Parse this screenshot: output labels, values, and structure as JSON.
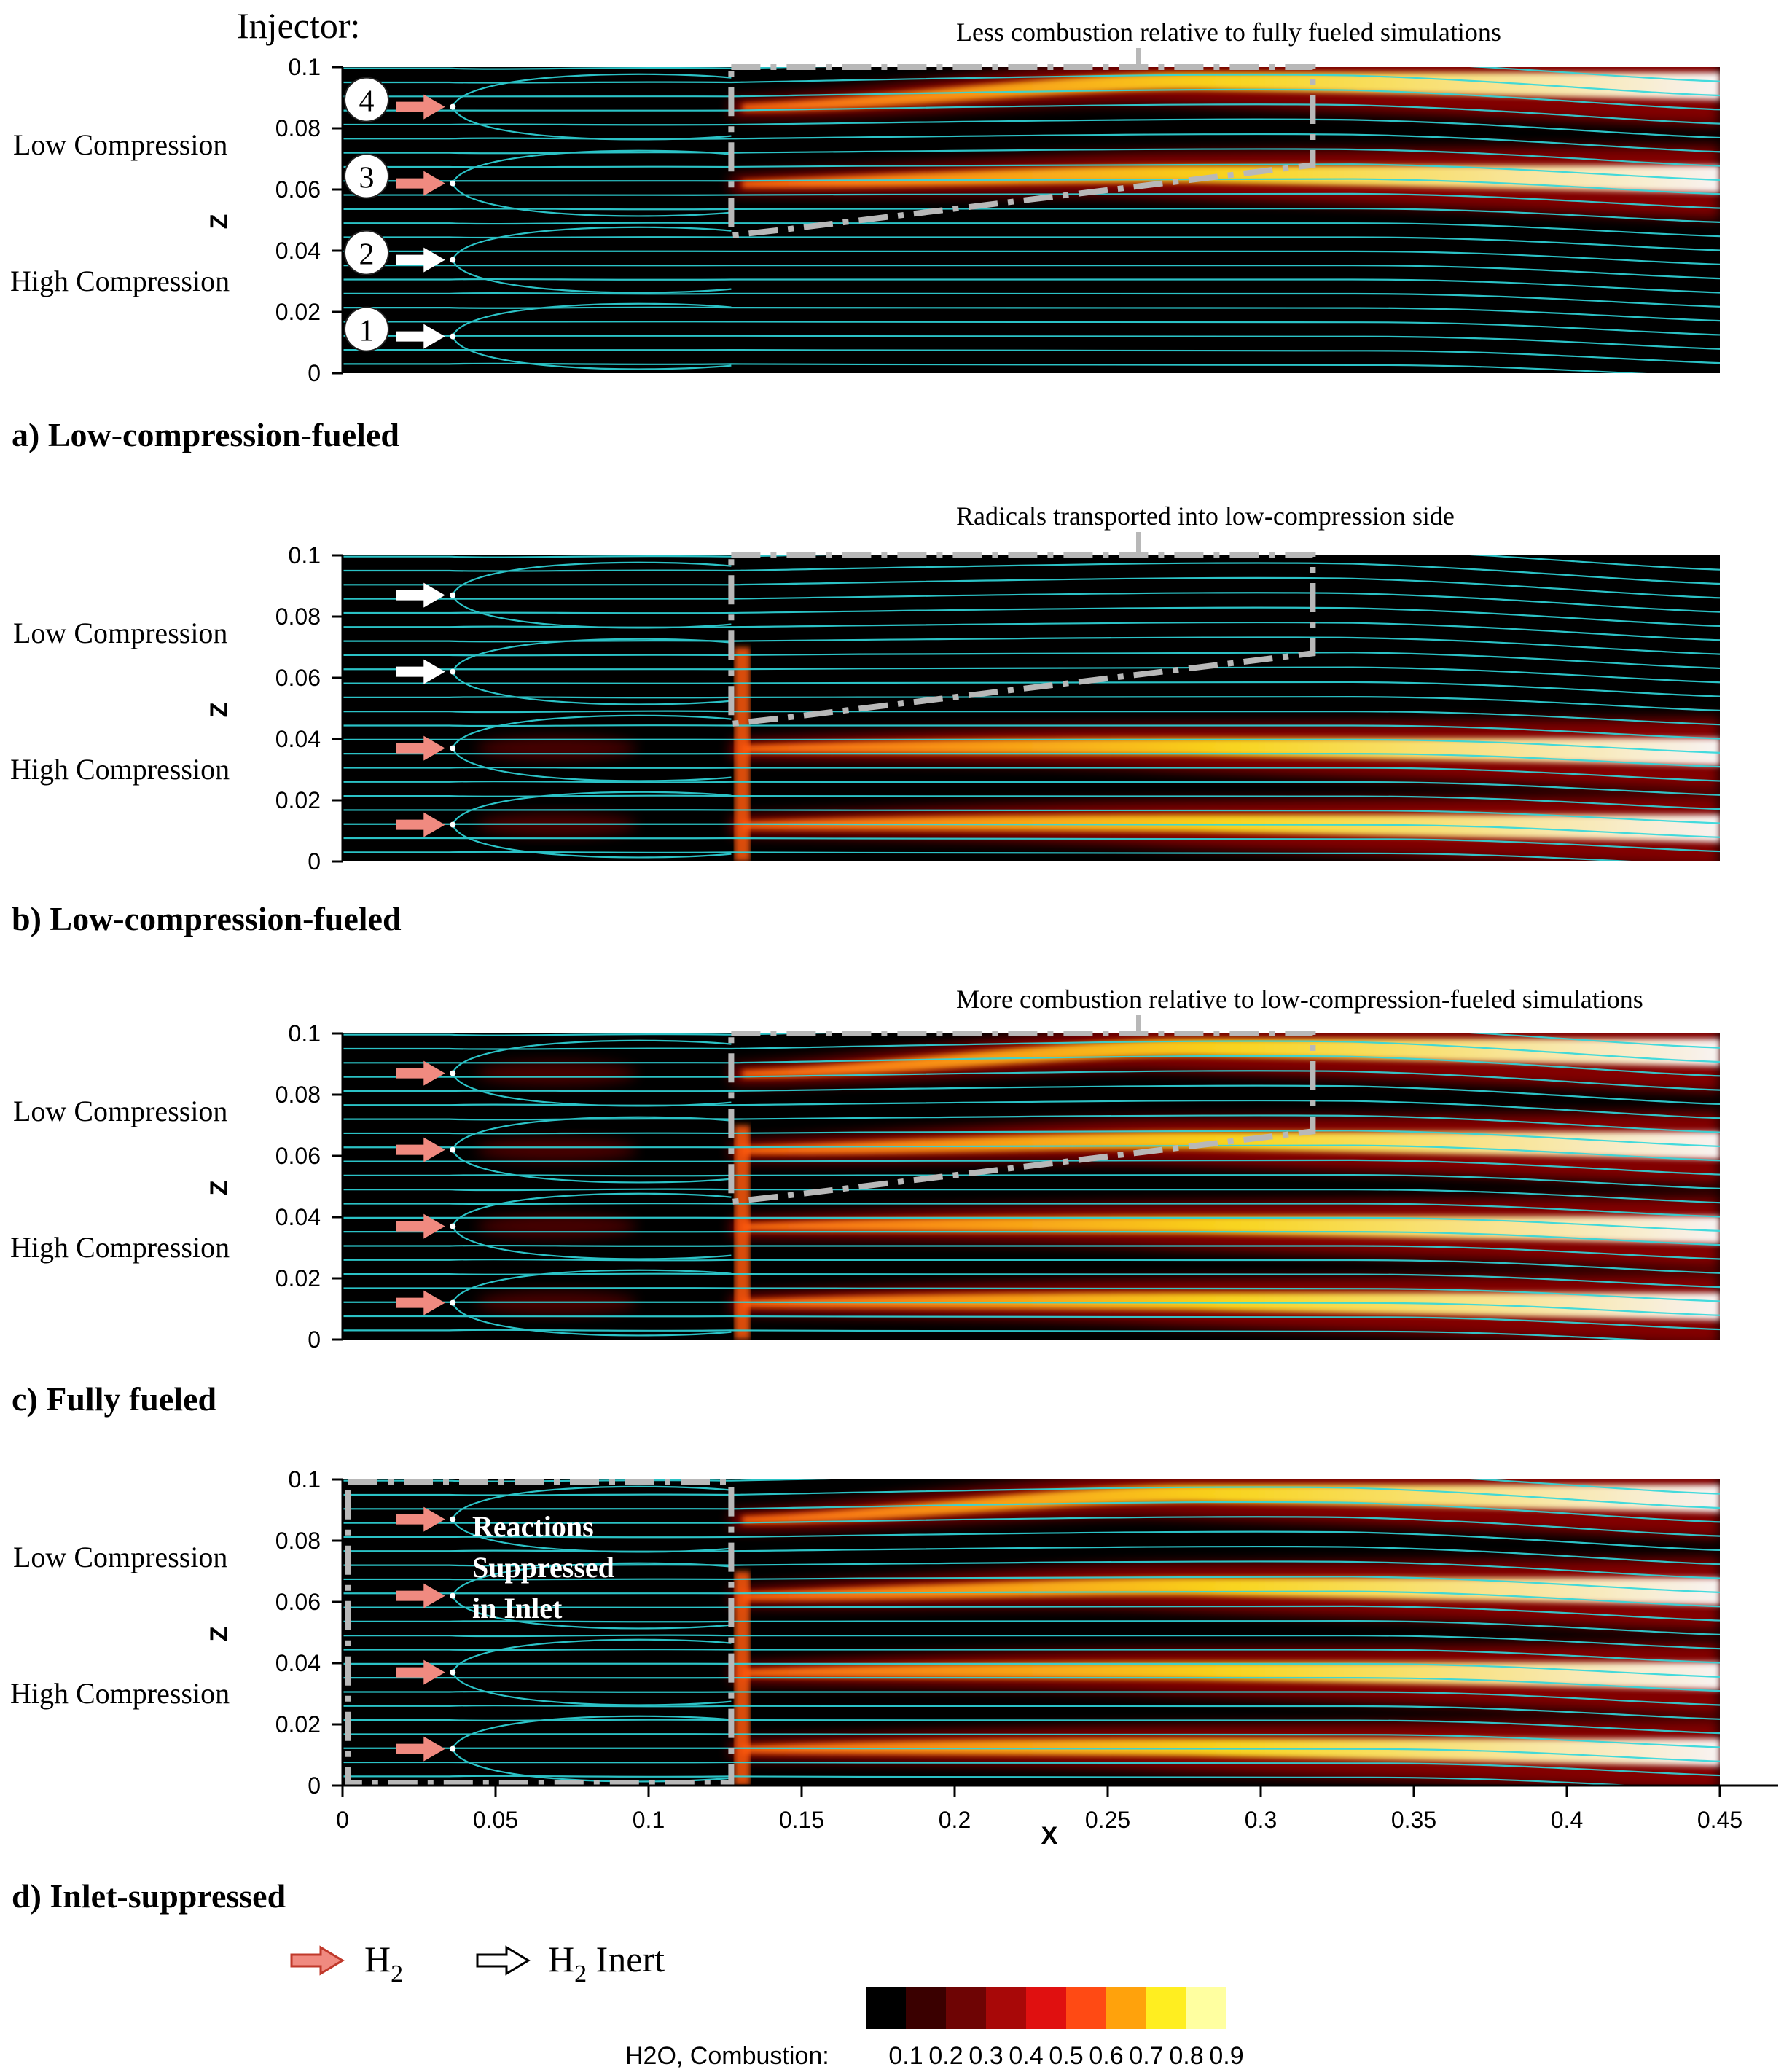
{
  "figure": {
    "injector_label": "Injector:",
    "colorbar_label": "H2O, Combustion:",
    "colorbar_ticks": [
      "0.1",
      "0.2",
      "0.3",
      "0.4",
      "0.5",
      "0.6",
      "0.7",
      "0.8",
      "0.9"
    ],
    "colorbar_colors": [
      "#000000",
      "#3a0000",
      "#6e0404",
      "#a80808",
      "#e01010",
      "#ff4a14",
      "#ffa20c",
      "#ffee20",
      "#ffffa0",
      "#ffffff"
    ],
    "legend": {
      "h2_main": "H",
      "h2_sub": "2",
      "inert_main": "H",
      "inert_sub": "2",
      "inert_suffix": " Inert"
    },
    "colors": {
      "streamline": "#30d8dc",
      "fuel_arrow": "#f08a80",
      "inert_arrow": "#ffffff",
      "dash_box": "#b8b8b8",
      "background_field": "#000000"
    }
  },
  "chart_data": [
    {
      "type": "contour",
      "panel": "a",
      "caption": "a) Low-compression-fueled",
      "annotation": "Less combustion relative to  fully fueled simulations",
      "xlabel": "",
      "ylabel": "Z",
      "xlim": [
        0,
        0.45
      ],
      "ylim": [
        0,
        0.1
      ],
      "yticks": [
        "0.1",
        "0.08",
        "0.06",
        "0.04",
        "0.02",
        "0"
      ],
      "side_labels": {
        "low": "Low Compression",
        "high": "High Compression"
      },
      "injectors": [
        {
          "number": "4",
          "z": 0.087,
          "fuel": "H2"
        },
        {
          "number": "3",
          "z": 0.062,
          "fuel": "H2"
        },
        {
          "number": "2",
          "z": 0.037,
          "fuel": "H2 Inert"
        },
        {
          "number": "1",
          "z": 0.012,
          "fuel": "H2 Inert"
        }
      ],
      "highlight_box": {
        "x": [
          0.127,
          0.317
        ],
        "z_top": 0.1,
        "z_bottom_left": 0.047,
        "z_bottom_right": 0.068
      }
    },
    {
      "type": "contour",
      "panel": "b",
      "caption": "b) Low-compression-fueled",
      "annotation": "Radicals transported into  low-compression side",
      "xlabel": "",
      "ylabel": "Z",
      "xlim": [
        0,
        0.45
      ],
      "ylim": [
        0,
        0.1
      ],
      "yticks": [
        "0.1",
        "0.08",
        "0.06",
        "0.04",
        "0.02",
        "0"
      ],
      "side_labels": {
        "low": "Low Compression",
        "high": "High Compression"
      },
      "injectors": [
        {
          "number": "",
          "z": 0.087,
          "fuel": "H2 Inert"
        },
        {
          "number": "",
          "z": 0.062,
          "fuel": "H2 Inert"
        },
        {
          "number": "",
          "z": 0.037,
          "fuel": "H2"
        },
        {
          "number": "",
          "z": 0.012,
          "fuel": "H2"
        }
      ],
      "highlight_box": {
        "x": [
          0.127,
          0.317
        ],
        "z_top": 0.1,
        "z_bottom_left": 0.047,
        "z_bottom_right": 0.068
      }
    },
    {
      "type": "contour",
      "panel": "c",
      "caption": "c) Fully fueled",
      "annotation": "More combustion relative to low-compression-fueled simulations",
      "xlabel": "",
      "ylabel": "Z",
      "xlim": [
        0,
        0.45
      ],
      "ylim": [
        0,
        0.1
      ],
      "yticks": [
        "0.1",
        "0.08",
        "0.06",
        "0.04",
        "0.02",
        "0"
      ],
      "side_labels": {
        "low": "Low Compression",
        "high": "High Compression"
      },
      "injectors": [
        {
          "number": "",
          "z": 0.087,
          "fuel": "H2"
        },
        {
          "number": "",
          "z": 0.062,
          "fuel": "H2"
        },
        {
          "number": "",
          "z": 0.037,
          "fuel": "H2"
        },
        {
          "number": "",
          "z": 0.012,
          "fuel": "H2"
        }
      ],
      "highlight_box": {
        "x": [
          0.127,
          0.317
        ],
        "z_top": 0.1,
        "z_bottom_left": 0.047,
        "z_bottom_right": 0.068
      }
    },
    {
      "type": "contour",
      "panel": "d",
      "caption": "d) Inlet-suppressed",
      "annotation": "",
      "box_text": [
        "Reactions",
        "Suppressed",
        "in Inlet"
      ],
      "xlabel": "X",
      "ylabel": "Z",
      "xlim": [
        0,
        0.45
      ],
      "ylim": [
        0,
        0.1
      ],
      "yticks": [
        "0.1",
        "0.08",
        "0.06",
        "0.04",
        "0.02",
        "0"
      ],
      "xticks": [
        "0",
        "0.05",
        "0.1",
        "0.15",
        "0.2",
        "0.25",
        "0.3",
        "0.35",
        "0.4",
        "0.45"
      ],
      "side_labels": {
        "low": "Low Compression",
        "high": "High Compression"
      },
      "injectors": [
        {
          "number": "",
          "z": 0.087,
          "fuel": "H2"
        },
        {
          "number": "",
          "z": 0.062,
          "fuel": "H2"
        },
        {
          "number": "",
          "z": 0.037,
          "fuel": "H2"
        },
        {
          "number": "",
          "z": 0.012,
          "fuel": "H2"
        }
      ],
      "highlight_box": {
        "x": [
          0.0,
          0.127
        ],
        "z_top": 0.1,
        "z_bottom_left": 0.0,
        "z_bottom_right": 0.0
      }
    }
  ]
}
